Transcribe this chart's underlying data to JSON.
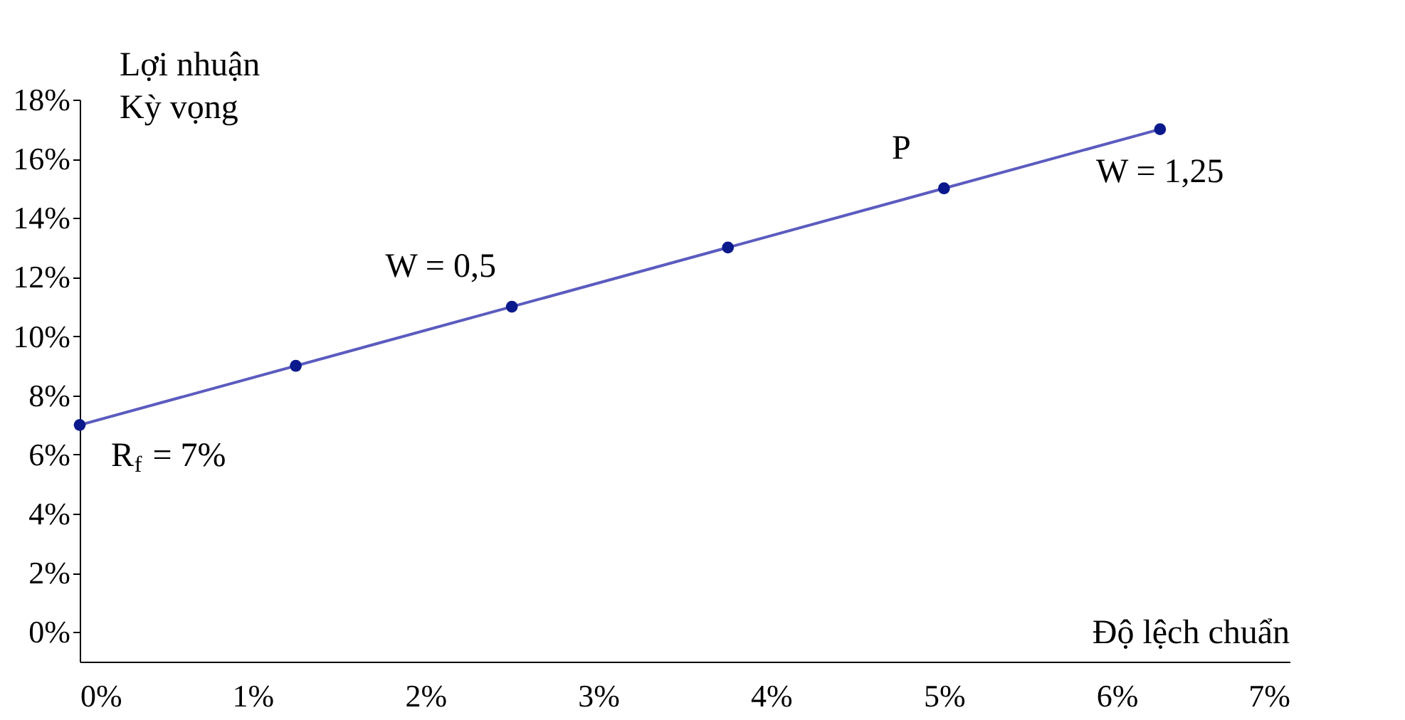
{
  "chart_data": {
    "type": "scatter",
    "xlabel": "Độ lệch chuẩn",
    "ylabel": "Lợi nhuận\nKỳ vọng",
    "series": [
      {
        "type": "line",
        "color": "#5b5bbf",
        "x": [
          0,
          6.25
        ],
        "values": [
          7,
          17
        ]
      },
      {
        "marker": "circle",
        "color": "#0a1a8c",
        "x": [
          0,
          1.25,
          2.5,
          3.75,
          5,
          6.25
        ],
        "values": [
          7,
          9,
          11,
          13,
          15,
          17
        ]
      }
    ],
    "xlim": [
      0,
      7
    ],
    "ylim": [
      -1,
      18
    ],
    "xticks": [
      {
        "value": 0,
        "label": "0%"
      },
      {
        "value": 1,
        "label": "1%"
      },
      {
        "value": 2,
        "label": "2%"
      },
      {
        "value": 3,
        "label": "3%"
      },
      {
        "value": 4,
        "label": "4%"
      },
      {
        "value": 5,
        "label": "5%"
      },
      {
        "value": 6,
        "label": "6%"
      },
      {
        "value": 7,
        "label": "7%"
      }
    ],
    "yticks": [
      {
        "value": 0,
        "label": "0%"
      },
      {
        "value": 2,
        "label": "2%"
      },
      {
        "value": 4,
        "label": "4%"
      },
      {
        "value": 6,
        "label": "6%"
      },
      {
        "value": 8,
        "label": "8%"
      },
      {
        "value": 10,
        "label": "10%"
      },
      {
        "value": 12,
        "label": "12%"
      },
      {
        "value": 14,
        "label": "14%"
      },
      {
        "value": 16,
        "label": "16%"
      },
      {
        "value": 18,
        "label": "18%"
      }
    ],
    "annotations": [
      {
        "text": "R$_{f}$ = 7%",
        "x": 0,
        "y": 7
      },
      {
        "text": "W = 0,5",
        "x": 2.5,
        "y": 11
      },
      {
        "text": "P",
        "x": 5,
        "y": 15
      },
      {
        "text": "W = 1,25",
        "x": 6.25,
        "y": 17
      }
    ],
    "grid": false
  }
}
